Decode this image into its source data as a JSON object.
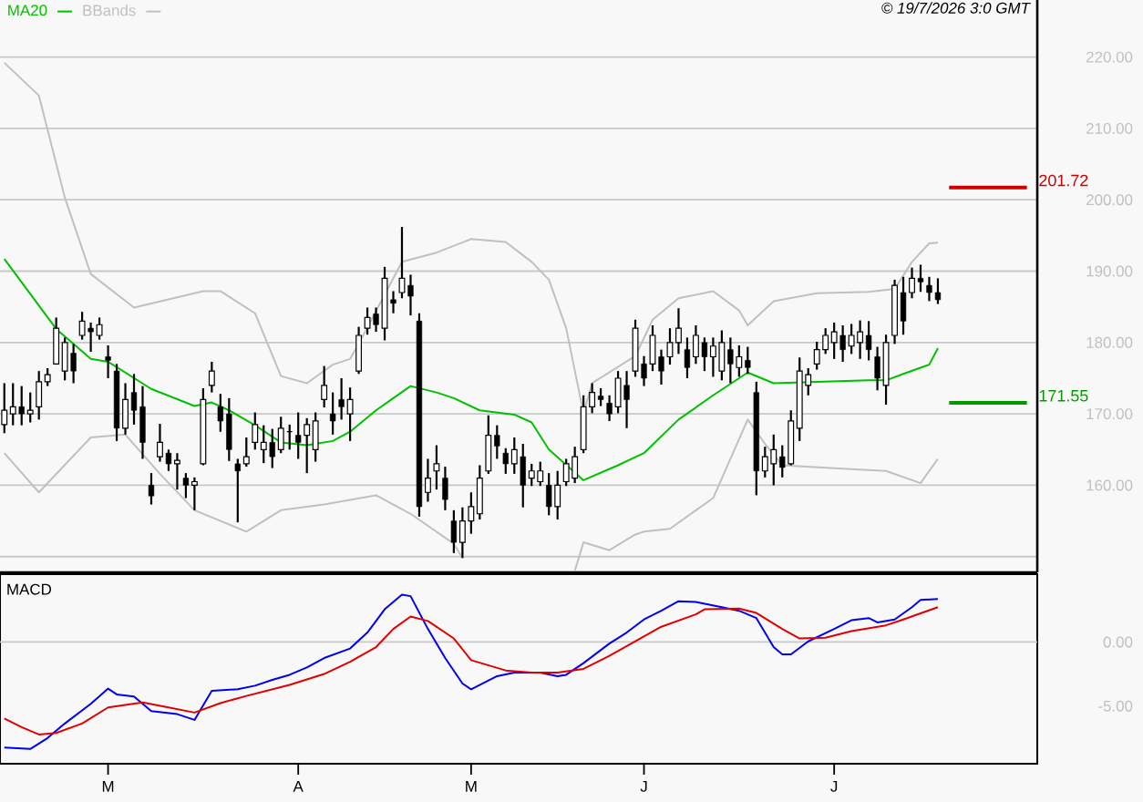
{
  "chart_data": [
    {
      "type": "candlestick",
      "categories": [
        null,
        null,
        null,
        null,
        null,
        null,
        null,
        null,
        null,
        null,
        null,
        null,
        null,
        null,
        null,
        null,
        null,
        null,
        null,
        null,
        null,
        null,
        null,
        null,
        null,
        null,
        null,
        null,
        null,
        null,
        null,
        null,
        null,
        null,
        null,
        null,
        null,
        null,
        null,
        null,
        null,
        null,
        null,
        null,
        null,
        null,
        null,
        null,
        null,
        null,
        null,
        null,
        null,
        null,
        null,
        null,
        null,
        null,
        null,
        null,
        null,
        null,
        null,
        null,
        null,
        null,
        null,
        null,
        null,
        null,
        null,
        null,
        null,
        null,
        null,
        null,
        null,
        null,
        null,
        null,
        null,
        null,
        null,
        null,
        null,
        null,
        null,
        null,
        null,
        null,
        null,
        null,
        null,
        null,
        null,
        null,
        null,
        null,
        null,
        null,
        null,
        null,
        null,
        null,
        null,
        null,
        null,
        null,
        null,
        null,
        null,
        null,
        null,
        null,
        null,
        null,
        null,
        null,
        null,
        null
      ],
      "ohlc": [
        [
          168.5,
          174.3,
          167.3,
          170.5
        ],
        [
          170,
          174.3,
          168.4,
          171
        ],
        [
          171,
          173.9,
          168.4,
          170
        ],
        [
          170,
          173,
          168.8,
          170.5
        ],
        [
          171,
          176,
          169.2,
          174.5
        ],
        [
          174.5,
          176.4,
          173.9,
          175.5
        ],
        [
          177,
          183.5,
          176.9,
          182
        ],
        [
          176,
          180.7,
          174.7,
          180
        ],
        [
          178.5,
          179.8,
          174.3,
          176
        ],
        [
          181,
          184.3,
          180.4,
          183
        ],
        [
          182,
          182.8,
          178.7,
          181.5
        ],
        [
          181,
          183.5,
          180.4,
          182.5
        ],
        [
          178,
          179.6,
          175,
          177.5
        ],
        [
          176,
          177,
          166.2,
          168
        ],
        [
          168,
          174.3,
          167.1,
          172
        ],
        [
          173,
          175.6,
          168.5,
          170.5
        ],
        [
          171,
          173.9,
          163.7,
          166
        ],
        [
          160,
          161.7,
          157.3,
          158.5
        ],
        [
          164,
          168.6,
          163.3,
          166
        ],
        [
          164.5,
          165,
          162,
          163
        ],
        [
          163,
          164.5,
          159.4,
          163.5
        ],
        [
          161,
          161.7,
          158.2,
          160
        ],
        [
          160,
          161.1,
          156.5,
          160.5
        ],
        [
          163,
          173.6,
          162.8,
          172
        ],
        [
          174,
          177.3,
          173,
          176
        ],
        [
          171,
          172.8,
          167.5,
          169
        ],
        [
          170,
          172.2,
          163.4,
          165
        ],
        [
          163,
          163.7,
          154.8,
          162
        ],
        [
          163,
          166.7,
          162.6,
          164
        ],
        [
          166,
          170.2,
          165,
          168.5
        ],
        [
          165,
          168.4,
          163.1,
          166
        ],
        [
          166,
          167.9,
          162.4,
          164
        ],
        [
          165,
          169.6,
          164.5,
          168
        ],
        [
          167.5,
          168.5,
          165,
          167.5
        ],
        [
          167,
          170.2,
          163.7,
          166
        ],
        [
          167,
          169.4,
          161.7,
          168.5
        ],
        [
          165,
          170.2,
          163.3,
          169
        ],
        [
          172,
          176.7,
          170.9,
          174
        ],
        [
          170,
          173,
          167.1,
          169
        ],
        [
          172,
          175,
          169.2,
          171
        ],
        [
          170,
          173.7,
          166.2,
          172
        ],
        [
          176,
          182.2,
          175.6,
          181
        ],
        [
          182,
          184.9,
          181.1,
          183.5
        ],
        [
          184,
          184.9,
          181.5,
          182.5
        ],
        [
          182,
          190.6,
          180.3,
          189
        ],
        [
          186,
          187.2,
          184.1,
          185.5
        ],
        [
          187,
          196.2,
          186.2,
          189
        ],
        [
          188,
          189.5,
          183.8,
          186.5
        ],
        [
          183,
          184.1,
          155.6,
          157
        ],
        [
          159,
          163.7,
          157.7,
          161
        ],
        [
          162,
          165.6,
          159.4,
          163
        ],
        [
          161,
          162.6,
          156.5,
          158
        ],
        [
          155,
          156.5,
          150.5,
          152
        ],
        [
          152,
          156.9,
          149.8,
          155
        ],
        [
          155,
          159,
          153.2,
          157
        ],
        [
          156,
          162.8,
          155.2,
          161
        ],
        [
          162,
          169.8,
          161.6,
          167
        ],
        [
          167,
          168.4,
          163.7,
          165.5
        ],
        [
          164.5,
          165.2,
          161.6,
          163
        ],
        [
          163,
          166.7,
          161.6,
          165
        ],
        [
          164,
          165.8,
          156.9,
          160
        ],
        [
          161,
          163,
          159.9,
          162
        ],
        [
          160.5,
          163.3,
          159.9,
          162
        ],
        [
          160,
          161.7,
          155.8,
          157
        ],
        [
          157,
          162,
          155.2,
          160
        ],
        [
          160.5,
          163.7,
          159.9,
          163
        ],
        [
          161,
          165.4,
          160.3,
          164
        ],
        [
          165,
          172.6,
          164.5,
          171
        ],
        [
          171,
          174.3,
          170.1,
          173
        ],
        [
          172.5,
          173.6,
          171.1,
          172
        ],
        [
          171.5,
          172.6,
          169,
          170
        ],
        [
          171,
          176,
          170.1,
          175
        ],
        [
          174,
          176,
          168,
          172
        ],
        [
          176,
          183.2,
          175.2,
          182
        ],
        [
          177,
          178.1,
          173.9,
          175
        ],
        [
          177,
          182.4,
          176,
          181
        ],
        [
          178,
          179,
          174.1,
          176
        ],
        [
          178,
          182,
          176.9,
          180
        ],
        [
          180,
          184.8,
          178.4,
          182
        ],
        [
          179,
          180.7,
          175,
          176.5
        ],
        [
          178,
          182.4,
          177,
          181
        ],
        [
          180,
          180.7,
          176,
          178
        ],
        [
          178,
          180.7,
          175.2,
          179.5
        ],
        [
          176,
          181.7,
          174.7,
          180
        ],
        [
          179,
          180.7,
          174.3,
          177
        ],
        [
          176.5,
          179.6,
          175.2,
          178
        ],
        [
          177.5,
          179.4,
          175.6,
          176.5
        ],
        [
          173,
          174.5,
          158.6,
          162
        ],
        [
          162,
          165.4,
          161.1,
          164
        ],
        [
          163,
          167.1,
          160,
          165
        ],
        [
          164,
          165.6,
          161.1,
          162.5
        ],
        [
          163,
          170.5,
          162.8,
          169
        ],
        [
          168,
          177.9,
          166.2,
          176
        ],
        [
          174,
          176.4,
          172.6,
          175.5
        ],
        [
          177,
          180.1,
          176.2,
          179
        ],
        [
          179,
          182,
          178.4,
          181
        ],
        [
          180,
          182.8,
          177.7,
          181.5
        ],
        [
          181,
          182.4,
          177.3,
          179
        ],
        [
          179.5,
          182.6,
          178.4,
          181
        ],
        [
          180,
          183.1,
          177.7,
          181.5
        ],
        [
          181,
          183,
          177.5,
          179
        ],
        [
          178,
          179.4,
          173.3,
          175
        ],
        [
          174,
          181.1,
          171.3,
          180
        ],
        [
          181,
          188.8,
          179.8,
          188
        ],
        [
          187,
          189.2,
          181.1,
          183
        ],
        [
          187,
          190.5,
          186.2,
          189
        ],
        [
          189,
          190.9,
          187.1,
          188.5
        ],
        [
          188,
          189.2,
          185.8,
          187
        ],
        [
          187,
          189,
          185.4,
          186
        ],
        null,
        null,
        null,
        null,
        null,
        null,
        null,
        null,
        null,
        null,
        null
      ],
      "series": [
        {
          "name": "MA20",
          "type": "line",
          "color": "#00c000",
          "values": [
            191.7,
            null,
            null,
            null,
            null,
            null,
            181.9,
            null,
            null,
            null,
            177.7,
            null,
            177.3,
            null,
            null,
            null,
            null,
            173.5,
            null,
            null,
            null,
            null,
            171.1,
            null,
            171.6,
            null,
            170.5,
            null,
            null,
            168.4,
            null,
            null,
            166,
            null,
            null,
            165.6,
            null,
            null,
            166.2,
            null,
            167.5,
            null,
            null,
            170.5,
            null,
            172.2,
            null,
            173.9,
            null,
            null,
            173,
            null,
            172.2,
            null,
            null,
            170.5,
            null,
            null,
            null,
            169.9,
            null,
            168.8,
            null,
            165,
            null,
            null,
            null,
            160.7,
            null,
            null,
            null,
            162.8,
            null,
            null,
            164.5,
            null,
            null,
            null,
            169.2,
            null,
            null,
            null,
            172.6,
            null,
            null,
            null,
            175.8,
            null,
            null,
            174.3,
            null,
            null,
            null,
            null,
            174.5,
            null,
            null,
            null,
            null,
            null,
            174.7,
            null,
            174.7,
            null,
            175.6,
            null,
            null,
            176.9,
            179.2,
            null,
            null,
            null,
            null,
            null,
            null,
            null,
            null,
            null,
            null,
            null
          ]
        },
        {
          "name": "BBands",
          "type": "line",
          "color": "#c0c0c0",
          "values": [
            219.2,
            null,
            null,
            null,
            214.6,
            null,
            null,
            200.3,
            null,
            null,
            189.6,
            null,
            null,
            null,
            null,
            184.9,
            null,
            null,
            null,
            null,
            null,
            null,
            null,
            187.2,
            null,
            187.2,
            null,
            null,
            null,
            184.1,
            null,
            null,
            175.3,
            null,
            null,
            174.3,
            null,
            null,
            176.9,
            null,
            177.7,
            179.8,
            null,
            null,
            null,
            null,
            191.3,
            null,
            null,
            null,
            192.6,
            null,
            null,
            null,
            194.5,
            null,
            null,
            null,
            194.1,
            null,
            null,
            191.3,
            null,
            188.8,
            null,
            182,
            null,
            170.1,
            174.3,
            null,
            null,
            null,
            null,
            178.1,
            null,
            183.2,
            null,
            null,
            186.2,
            null,
            null,
            null,
            187.2,
            null,
            null,
            184.5,
            182.4,
            null,
            null,
            185.8,
            null,
            null,
            null,
            null,
            186.9,
            null,
            null,
            null,
            null,
            null,
            187.1,
            null,
            null,
            187.5,
            null,
            191.3,
            null,
            193.9,
            194.0,
            null,
            null,
            null,
            null,
            null,
            null,
            null,
            null,
            null,
            null,
            null
          ]
        },
        {
          "type": "line",
          "color": "#c0c0c0",
          "values": [
            164.5,
            null,
            null,
            null,
            159,
            null,
            null,
            null,
            null,
            null,
            166.7,
            null,
            null,
            null,
            167.1,
            null,
            null,
            null,
            161.6,
            null,
            null,
            null,
            156.5,
            null,
            null,
            null,
            null,
            null,
            153.5,
            null,
            null,
            null,
            156.5,
            null,
            null,
            null,
            null,
            157.3,
            null,
            null,
            null,
            null,
            null,
            158.6,
            null,
            null,
            null,
            156,
            null,
            null,
            null,
            null,
            151.8,
            149.8,
            null,
            null,
            null,
            null,
            null,
            null,
            null,
            null,
            null,
            null,
            null,
            null,
            null,
            null,
            null,
            null,
            null,
            null,
            null,
            null,
            null,
            null,
            null,
            null,
            null,
            null,
            null,
            null,
            null,
            null,
            null,
            null,
            null,
            null,
            null,
            null,
            null,
            null,
            null,
            null,
            null,
            null,
            null,
            null,
            null,
            null,
            null,
            null,
            null,
            null,
            null,
            null,
            null,
            null,
            null,
            null,
            null,
            null,
            null,
            null,
            null,
            null,
            null,
            null,
            null,
            null
          ]
        },
        {
          "type": "line",
          "color": "#c0c0c0",
          "values": [
            null,
            null,
            null,
            null,
            null,
            null,
            null,
            null,
            null,
            null,
            null,
            null,
            null,
            null,
            null,
            null,
            null,
            null,
            null,
            null,
            null,
            null,
            null,
            null,
            null,
            null,
            null,
            null,
            null,
            null,
            null,
            null,
            null,
            null,
            null,
            null,
            null,
            null,
            null,
            null,
            null,
            null,
            null,
            null,
            null,
            null,
            null,
            null,
            null,
            null,
            null,
            null,
            null,
            null,
            null,
            null,
            null,
            null,
            null,
            null,
            null,
            null,
            null,
            null,
            null,
            null,
            148,
            152,
            null,
            null,
            150.9,
            null,
            null,
            153.1,
            153.5,
            null,
            null,
            153.9,
            null,
            null,
            null,
            null,
            158.2,
            null,
            null,
            null,
            169.2,
            null,
            165.8,
            null,
            162.8,
            null,
            null,
            null,
            null,
            null,
            162.4,
            null,
            null,
            null,
            null,
            null,
            162,
            null,
            null,
            null,
            160.3,
            null,
            163.7,
            null,
            null,
            null,
            null,
            null,
            null,
            null,
            null,
            null,
            null,
            null
          ]
        }
      ],
      "ylim": [
        147.8,
        228
      ],
      "yticks": [
        {
          "value": 150,
          "label": null
        },
        {
          "value": 160,
          "label": "160.00"
        },
        {
          "value": 170,
          "label": "170.00"
        },
        {
          "value": 180,
          "label": "180.00"
        },
        {
          "value": 190,
          "label": "190.00"
        },
        {
          "value": 200,
          "label": "200.00"
        },
        {
          "value": 210,
          "label": "210.00"
        },
        {
          "value": 220,
          "label": "220.00"
        }
      ],
      "ref_lines": [
        {
          "axis": "y",
          "value": 201.72,
          "label": "201.72",
          "color": "#cc0000"
        },
        {
          "axis": "y",
          "value": 171.55,
          "label": "171.55",
          "color": "#009900"
        }
      ],
      "grid": "y",
      "legend": "top left",
      "tick_labels": "y",
      "annotations": [
        "© 19/7/2026 3:0 GMT"
      ]
    },
    {
      "type": "line",
      "title": "MACD",
      "categories": [
        null,
        null,
        null,
        null,
        null,
        null,
        null,
        null,
        null,
        null,
        null,
        null,
        "M",
        null,
        null,
        null,
        null,
        null,
        null,
        null,
        null,
        null,
        null,
        null,
        null,
        null,
        null,
        null,
        null,
        null,
        null,
        null,
        null,
        null,
        "A",
        null,
        null,
        null,
        null,
        null,
        null,
        null,
        null,
        null,
        null,
        null,
        null,
        null,
        null,
        null,
        null,
        null,
        null,
        null,
        "M",
        null,
        null,
        null,
        null,
        null,
        null,
        null,
        null,
        null,
        null,
        null,
        null,
        null,
        null,
        null,
        null,
        null,
        null,
        null,
        "J",
        null,
        null,
        null,
        null,
        null,
        null,
        null,
        null,
        null,
        null,
        null,
        null,
        null,
        null,
        null,
        null,
        null,
        null,
        null,
        null,
        null,
        "J",
        null,
        null,
        null,
        null,
        null,
        null,
        null,
        null,
        null,
        null,
        null,
        null,
        null,
        null,
        null,
        null,
        null,
        null,
        null,
        null,
        null,
        null,
        null
      ],
      "series": [
        {
          "color": "#0000ee",
          "values": [
            -8.24,
            null,
            null,
            -8.35,
            null,
            -7.5,
            null,
            -6.36,
            null,
            null,
            -4.83,
            null,
            -3.64,
            -4.09,
            null,
            -4.26,
            null,
            -5.4,
            null,
            null,
            -5.63,
            null,
            -6.08,
            null,
            -3.81,
            null,
            null,
            -3.69,
            null,
            -3.41,
            null,
            -2.96,
            null,
            -2.56,
            null,
            -1.99,
            null,
            -1.25,
            null,
            null,
            -0.51,
            null,
            0.74,
            null,
            2.55,
            null,
            3.69,
            3.58,
            null,
            1.02,
            null,
            -1.25,
            null,
            -3.24,
            -3.69,
            null,
            null,
            -2.67,
            null,
            -2.39,
            null,
            null,
            -2.39,
            null,
            -2.67,
            -2.56,
            null,
            -1.65,
            null,
            null,
            -0.12,
            null,
            0.74,
            null,
            1.76,
            null,
            2.44,
            null,
            3.18,
            null,
            3.12,
            null,
            null,
            2.72,
            null,
            2.44,
            null,
            1.87,
            null,
            -0.4,
            -0.97,
            -0.97,
            null,
            0.05,
            null,
            null,
            1.02,
            null,
            1.7,
            null,
            1.87,
            1.53,
            null,
            1.76,
            null,
            2.72,
            3.29,
            null,
            3.35,
            null,
            null,
            null,
            null,
            null,
            null,
            null,
            null,
            null,
            null,
            null
          ]
        },
        {
          "color": "#e00000",
          "values": [
            -5.97,
            null,
            -6.65,
            null,
            -7.22,
            null,
            -7.1,
            null,
            null,
            -6.36,
            null,
            null,
            -5.11,
            null,
            null,
            null,
            -4.72,
            null,
            null,
            -5.11,
            null,
            null,
            -5.51,
            null,
            null,
            -4.77,
            null,
            null,
            -4.21,
            null,
            null,
            null,
            null,
            -3.35,
            null,
            null,
            null,
            -2.5,
            null,
            null,
            -1.54,
            null,
            null,
            -0.4,
            null,
            1.02,
            null,
            1.99,
            null,
            1.64,
            null,
            null,
            0.28,
            null,
            -1.42,
            null,
            null,
            null,
            -2.22,
            null,
            null,
            -2.39,
            null,
            null,
            -2.39,
            null,
            null,
            -2.1,
            null,
            null,
            -1.08,
            null,
            null,
            0.05,
            null,
            null,
            1.19,
            null,
            null,
            null,
            2.16,
            2.55,
            null,
            null,
            null,
            2.61,
            null,
            2.27,
            null,
            null,
            1.02,
            null,
            0.28,
            null,
            null,
            0.34,
            null,
            null,
            0.85,
            null,
            null,
            null,
            1.3,
            null,
            1.76,
            null,
            null,
            null,
            2.72,
            null,
            null,
            null,
            null,
            null,
            null,
            null,
            null,
            null,
            null,
            null
          ]
        }
      ],
      "ylim": [
        -9.5,
        5.3
      ],
      "yticks": [
        {
          "value": 0,
          "label": "0.00"
        },
        {
          "value": -5,
          "label": "-5.00"
        }
      ],
      "ref_lines": [
        {
          "axis": "y",
          "value": 0,
          "color": "#c8c8c8"
        }
      ]
    }
  ]
}
